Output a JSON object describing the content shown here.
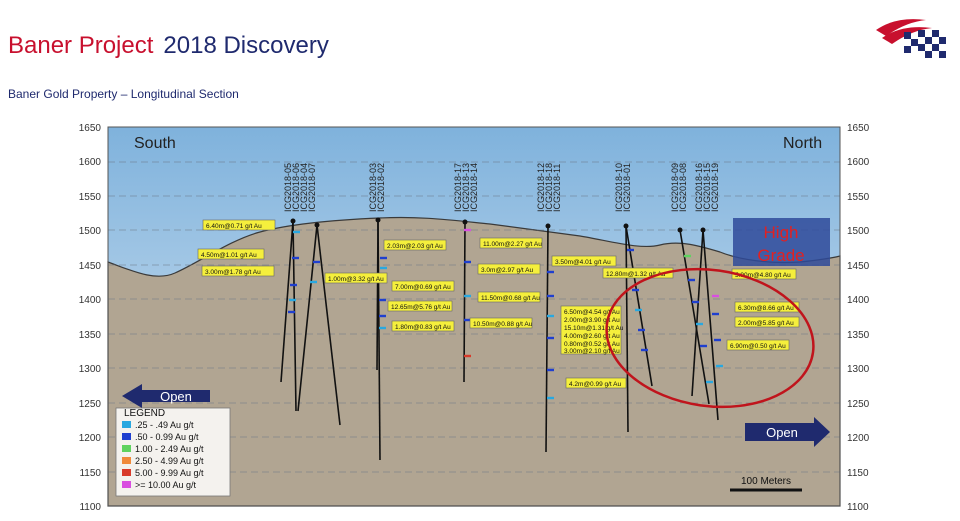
{
  "header": {
    "title_part1": "Baner Project",
    "title_part2": "2018 Discovery",
    "subtitle": "Baner Gold Property – Longitudinal Section"
  },
  "section": {
    "south_label": "South",
    "north_label": "North",
    "elevations": [
      "1650",
      "1600",
      "1550",
      "1500",
      "1450",
      "1400",
      "1350",
      "1300",
      "1250",
      "1200",
      "1150",
      "1100"
    ],
    "drillholes": [
      {
        "name": "ICG2018-05"
      },
      {
        "name": "ICG2018-06"
      },
      {
        "name": "ICG2018-04"
      },
      {
        "name": "ICG2018-07"
      },
      {
        "name": "ICG2018-03"
      },
      {
        "name": "ICG2018-02"
      },
      {
        "name": "ICG2018-17"
      },
      {
        "name": "ICG2018-13"
      },
      {
        "name": "ICG2018-14"
      },
      {
        "name": "ICG2018-12"
      },
      {
        "name": "ICG2018-18"
      },
      {
        "name": "ICG2018-11"
      },
      {
        "name": "ICG2018-10"
      },
      {
        "name": "ICG2018-01"
      },
      {
        "name": "ICG2018-09"
      },
      {
        "name": "ICG2018-08"
      },
      {
        "name": "ICG2018-16"
      },
      {
        "name": "ICG2018-15"
      },
      {
        "name": "ICG2018-19"
      }
    ],
    "intercepts": [
      {
        "text": "6.40m@0.71 g/t Au"
      },
      {
        "text": "4.50m@1.01 g/t Au"
      },
      {
        "text": "3.00m@1.78 g/t Au"
      },
      {
        "text": "1.00m@3.32 g/t Au"
      },
      {
        "text": "2.03m@2.03 g/t Au"
      },
      {
        "text": "7.00m@0.69 g/t Au"
      },
      {
        "text": "12.65m@5.76 g/t Au"
      },
      {
        "text": "1.80m@0.83 g/t Au"
      },
      {
        "text": "11.00m@2.27 g/t Au"
      },
      {
        "text": "3.0m@2.97 g/t Au"
      },
      {
        "text": "11.50m@0.68 g/t Au"
      },
      {
        "text": "10.50m@0.88 g/t Au"
      },
      {
        "text": "3.50m@4.01 g/t Au"
      },
      {
        "text": "12.80m@1.32 g/t Au"
      },
      {
        "text": "6.50m@4.54 g/t Au"
      },
      {
        "text": "2.00m@3.90 g/t Au"
      },
      {
        "text": "15.10m@1.31 g/t Au"
      },
      {
        "text": "4.00m@2.60 g/t Au"
      },
      {
        "text": "0.80m@0.52 g/t Au"
      },
      {
        "text": "3.00m@2.10 g/t Au"
      },
      {
        "text": "4.2m@0.99 g/t Au"
      },
      {
        "text": "5.90m@4.80 g/t Au"
      },
      {
        "text": "6.30m@8.66 g/t Au"
      },
      {
        "text": "2.00m@5.85 g/t Au"
      },
      {
        "text": "6.90m@0.50 g/t Au"
      }
    ],
    "high_grade_line1": "High",
    "high_grade_line2": "Grade",
    "open_left": "Open",
    "open_right": "Open",
    "scale_label": "100 Meters"
  },
  "legend": {
    "title": "LEGEND",
    "items": [
      {
        "label": ".25 - .49 Au g/t",
        "color": "#29a8e0"
      },
      {
        "label": ".50 - 0.99 Au g/t",
        "color": "#1f3fcf"
      },
      {
        "label": "1.00 - 2.49 Au g/t",
        "color": "#5fd35f"
      },
      {
        "label": "2.50 - 4.99 Au g/t",
        "color": "#f08a3a"
      },
      {
        "label": "5.00 - 9.99 Au g/t",
        "color": "#d83a2a"
      },
      {
        "label": ">= 10.00 Au g/t",
        "color": "#d94ee0"
      }
    ]
  },
  "colors": {
    "title_red": "#c8102e",
    "title_blue": "#1f2a6e",
    "sky": "#b7d4ec",
    "ground": "#b1a592",
    "callout": "#f5ef3c",
    "ellipse": "#c0141c",
    "arrow": "#1f2a6e"
  }
}
